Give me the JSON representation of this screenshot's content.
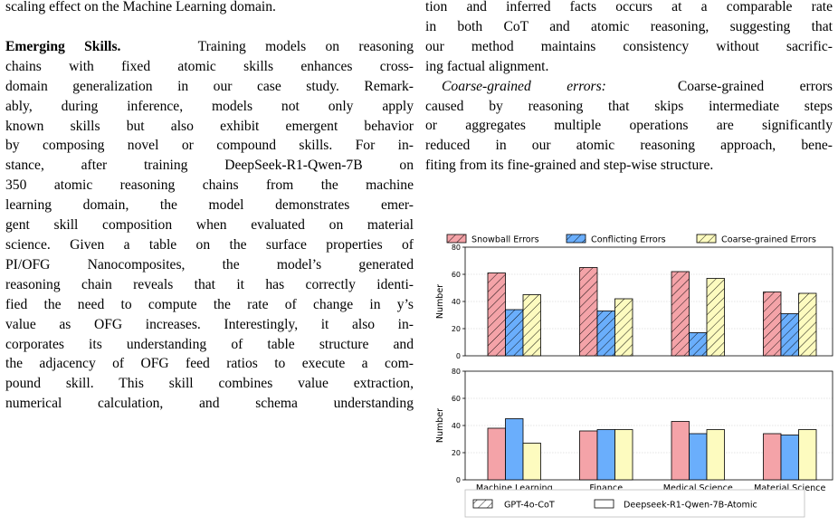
{
  "left_column": {
    "line_0": "scaling effect on the Machine Learning domain.",
    "heading": "Emerging Skills.",
    "lines": [
      "Training models on reasoning",
      "chains with fixed atomic skills enhances cross-",
      "domain generalization in our case study. Remark-",
      "ably, during inference, models not only apply",
      "known skills but also exhibit emergent behavior",
      "by composing novel or compound skills. For in-",
      "stance, after training DeepSeek-R1-Qwen-7B on",
      "350 atomic reasoning chains from the machine",
      "learning domain, the model demonstrates emer-",
      "gent skill composition when evaluated on material",
      "science. Given a table on the surface properties of",
      "PI/OFG Nanocomposites, the model’s generated",
      "reasoning chain reveals that it has correctly identi-",
      "fied the need to compute the rate of change in y’s",
      "value as OFG increases. Interestingly, it also in-",
      "corporates its understanding of table structure and",
      "the adjacency of OFG feed ratios to execute a com-",
      "pound skill. This skill combines value extraction,",
      "numerical calculation, and schema understanding"
    ]
  },
  "right_column": {
    "lines_top": [
      "tion and inferred facts occurs at a comparable rate",
      "in both CoT and atomic reasoning, suggesting that",
      "our method maintains consistency without sacrific-",
      "ing factual alignment."
    ],
    "coarse_heading": "Coarse-grained errors:",
    "coarse_lines": [
      "Coarse-grained errors",
      "caused by reasoning that skips intermediate steps",
      "or aggregates multiple operations are significantly",
      "reduced in our atomic reasoning approach, bene-",
      "fiting from its fine-grained and step-wise structure."
    ]
  },
  "colors": {
    "snowball": "#f4a3a8",
    "conflicting": "#6aaefc",
    "coarse": "#fdfbbf",
    "gpt_bar": "#f4a3a8",
    "atomic_bar": "#6aaefc",
    "atomic_bar3": "#fdfbbf",
    "grid": "#cccccc"
  },
  "chart_data": [
    {
      "type": "bar",
      "categories": [
        "Machine Learning",
        "Finance",
        "Medical Science",
        "Material Science"
      ],
      "series": [
        {
          "name": "Snowball Errors",
          "values": [
            61,
            65,
            62,
            47
          ]
        },
        {
          "name": "Conflicting Errors",
          "values": [
            34,
            33,
            17,
            31
          ]
        },
        {
          "name": "Coarse-grained Errors",
          "values": [
            45,
            42,
            57,
            46
          ]
        }
      ],
      "ylabel": "Number",
      "ylim": [
        0,
        80
      ],
      "yticks": [
        0,
        20,
        40,
        60,
        80
      ],
      "pattern": "hatched",
      "grid": true,
      "legend": "top"
    },
    {
      "type": "bar",
      "categories": [
        "Machine Learning",
        "Finance",
        "Medical Science",
        "Material Science"
      ],
      "series": [
        {
          "values": [
            38,
            36,
            43,
            34
          ]
        },
        {
          "values": [
            45,
            37,
            34,
            33
          ]
        },
        {
          "values": [
            27,
            37,
            37,
            37
          ]
        }
      ],
      "ylabel": "Number",
      "ylim": [
        0,
        80
      ],
      "yticks": [
        0,
        20,
        40,
        60,
        80
      ],
      "pattern": "solid",
      "grid": true
    }
  ],
  "bottom_legend": {
    "gpt": "GPT-4o-CoT",
    "atomic": "Deepseek-R1-Qwen-7B-Atomic"
  }
}
